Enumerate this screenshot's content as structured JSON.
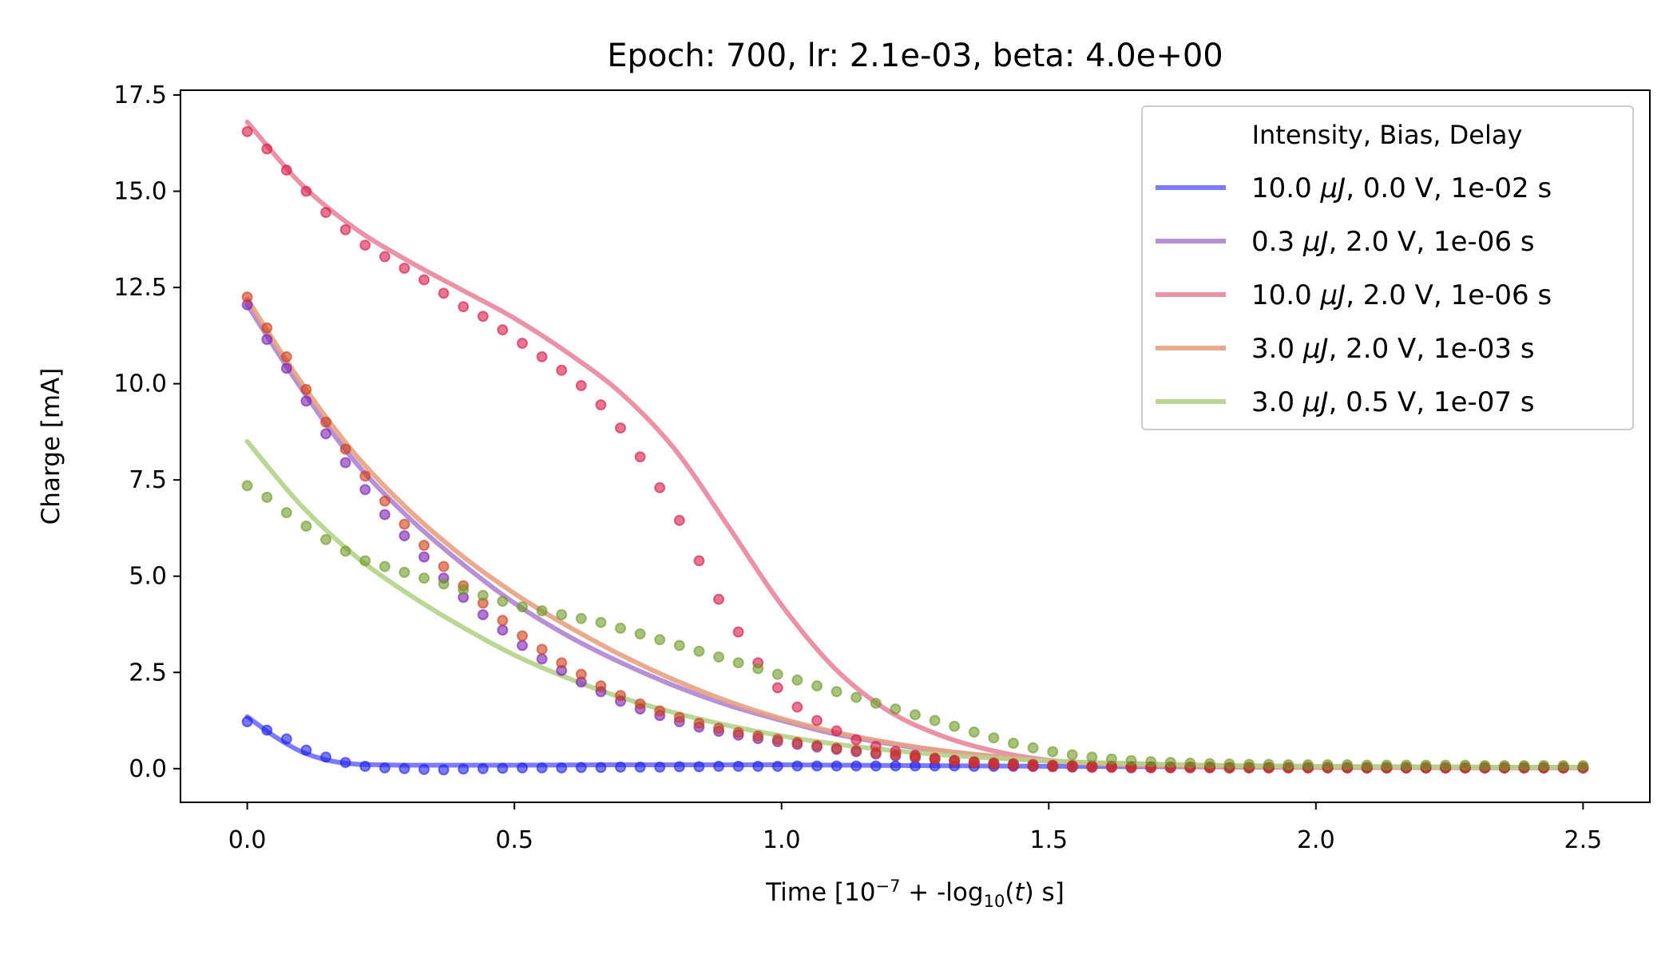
{
  "chart_data": {
    "type": "line",
    "title": "Epoch: 700, lr: 2.1e-03, beta: 4.0e+00",
    "xlabel": "Time [10⁻⁷ + -log₁₀(t) s]",
    "ylabel": "Charge [mA]",
    "xlim": [
      -0.125,
      2.625
    ],
    "ylim": [
      -0.875,
      17.625
    ],
    "xticks": [
      0.0,
      0.5,
      1.0,
      1.5,
      2.0,
      2.5
    ],
    "xtick_labels": [
      "0.0",
      "0.5",
      "1.0",
      "1.5",
      "2.0",
      "2.5"
    ],
    "yticks": [
      0.0,
      2.5,
      5.0,
      7.5,
      10.0,
      12.5,
      15.0,
      17.5
    ],
    "ytick_labels": [
      "0.0",
      "2.5",
      "5.0",
      "7.5",
      "10.0",
      "12.5",
      "15.0",
      "17.5"
    ],
    "grid": false,
    "legend": {
      "title": "Intensity, Bias, Delay",
      "placement": "top-right"
    },
    "marker_x": [
      0.0,
      0.0368,
      0.0735,
      0.1103,
      0.1471,
      0.1838,
      0.2206,
      0.2574,
      0.2941,
      0.3309,
      0.3676,
      0.4044,
      0.4412,
      0.4779,
      0.5147,
      0.5515,
      0.5882,
      0.625,
      0.6618,
      0.6985,
      0.7353,
      0.7721,
      0.8088,
      0.8456,
      0.8824,
      0.9191,
      0.9559,
      0.9926,
      1.0294,
      1.0662,
      1.1029,
      1.1397,
      1.1765,
      1.2132,
      1.25,
      1.2868,
      1.3235,
      1.3603,
      1.3971,
      1.4338,
      1.4706,
      1.5074,
      1.5441,
      1.5809,
      1.6176,
      1.6544,
      1.6912,
      1.7279,
      1.7647,
      1.8015,
      1.8382,
      1.875,
      1.9118,
      1.9485,
      1.9853,
      2.0221,
      2.0588,
      2.0956,
      2.1324,
      2.1691,
      2.2059,
      2.2426,
      2.2794,
      2.3162,
      2.3529,
      2.3897,
      2.4265,
      2.4632,
      2.5
    ],
    "series": [
      {
        "name": "10.0 μJ, 0.0 V, 1e-02 s",
        "line_color": "#6d6dff",
        "marker_color": "#2323e6",
        "line_x": [
          0.0,
          0.05,
          0.1,
          0.15,
          0.2,
          0.25,
          0.3,
          0.4,
          0.5,
          0.7,
          1.0,
          1.5,
          2.0,
          2.5
        ],
        "line_y": [
          1.35,
          0.85,
          0.45,
          0.22,
          0.12,
          0.1,
          0.09,
          0.09,
          0.09,
          0.1,
          0.1,
          0.06,
          0.04,
          0.03
        ],
        "marker_y": [
          1.22,
          1.0,
          0.77,
          0.48,
          0.3,
          0.16,
          0.06,
          0.02,
          0.0,
          -0.02,
          -0.03,
          -0.01,
          0.0,
          0.01,
          0.02,
          0.02,
          0.02,
          0.03,
          0.03,
          0.04,
          0.04,
          0.04,
          0.05,
          0.05,
          0.06,
          0.06,
          0.06,
          0.06,
          0.07,
          0.07,
          0.07,
          0.07,
          0.07,
          0.07,
          0.07,
          0.07,
          0.07,
          0.06,
          0.06,
          0.06,
          0.06,
          0.06,
          0.05,
          0.05,
          0.05,
          0.04,
          0.04,
          0.04,
          0.04,
          0.04,
          0.03,
          0.03,
          0.03,
          0.03,
          0.03,
          0.03,
          0.03,
          0.02,
          0.02,
          0.02,
          0.02,
          0.02,
          0.02,
          0.02,
          0.02,
          0.02,
          0.02,
          0.02,
          0.02
        ]
      },
      {
        "name": "0.3 μJ, 2.0 V, 1e-06 s",
        "line_color": "#b084d0",
        "marker_color": "#7a1fb0",
        "line_x": [
          0.0,
          0.1,
          0.2,
          0.3,
          0.4,
          0.5,
          0.6,
          0.7,
          0.8,
          0.9,
          1.0,
          1.1,
          1.2,
          1.3,
          1.4,
          1.5,
          1.6,
          1.8,
          2.0,
          2.5
        ],
        "line_y": [
          12.05,
          9.9,
          8.0,
          6.55,
          5.35,
          4.3,
          3.45,
          2.75,
          2.15,
          1.65,
          1.25,
          0.9,
          0.65,
          0.45,
          0.3,
          0.2,
          0.14,
          0.08,
          0.05,
          0.03
        ],
        "marker_y": [
          12.05,
          11.15,
          10.4,
          9.55,
          8.7,
          7.95,
          7.25,
          6.6,
          6.05,
          5.5,
          4.95,
          4.45,
          4.0,
          3.6,
          3.2,
          2.85,
          2.55,
          2.25,
          2.0,
          1.75,
          1.55,
          1.38,
          1.22,
          1.08,
          0.97,
          0.87,
          0.78,
          0.7,
          0.63,
          0.56,
          0.5,
          0.44,
          0.38,
          0.33,
          0.28,
          0.24,
          0.2,
          0.17,
          0.14,
          0.12,
          0.1,
          0.08,
          0.07,
          0.06,
          0.05,
          0.04,
          0.04,
          0.03,
          0.03,
          0.03,
          0.02,
          0.02,
          0.02,
          0.02,
          0.02,
          0.02,
          0.02,
          0.02,
          0.02,
          0.02,
          0.02,
          0.02,
          0.02,
          0.02,
          0.02,
          0.02,
          0.02,
          0.02,
          0.02
        ]
      },
      {
        "name": "10.0 μJ, 2.0 V, 1e-06 s",
        "line_color": "#e8879f",
        "marker_color": "#d41a4a",
        "line_x": [
          0.0,
          0.1,
          0.2,
          0.3,
          0.4,
          0.5,
          0.6,
          0.7,
          0.8,
          0.9,
          1.0,
          1.1,
          1.2,
          1.3,
          1.4,
          1.5,
          1.6,
          1.7,
          1.8,
          2.0,
          2.5
        ],
        "line_y": [
          16.8,
          15.2,
          14.05,
          13.2,
          12.45,
          11.7,
          10.8,
          9.75,
          8.3,
          6.3,
          4.25,
          2.6,
          1.5,
          0.85,
          0.45,
          0.22,
          0.12,
          0.07,
          0.05,
          0.03,
          0.02
        ],
        "marker_y": [
          16.55,
          16.1,
          15.55,
          15.0,
          14.45,
          14.0,
          13.6,
          13.3,
          13.0,
          12.7,
          12.35,
          12.0,
          11.75,
          11.4,
          11.05,
          10.7,
          10.35,
          9.95,
          9.45,
          8.85,
          8.1,
          7.3,
          6.45,
          5.4,
          4.4,
          3.55,
          2.75,
          2.1,
          1.6,
          1.25,
          0.98,
          0.75,
          0.58,
          0.45,
          0.35,
          0.27,
          0.2,
          0.15,
          0.11,
          0.08,
          0.06,
          0.05,
          0.04,
          0.03,
          0.03,
          0.02,
          0.02,
          0.02,
          0.02,
          0.02,
          0.02,
          0.02,
          0.02,
          0.02,
          0.02,
          0.02,
          0.02,
          0.02,
          0.02,
          0.02,
          0.02,
          0.02,
          0.02,
          0.02,
          0.02,
          0.02,
          0.02,
          0.02,
          0.02
        ]
      },
      {
        "name": "3.0 μJ, 2.0 V, 1e-03 s",
        "line_color": "#e5a184",
        "marker_color": "#cc3d1a",
        "line_x": [
          0.0,
          0.1,
          0.2,
          0.3,
          0.4,
          0.5,
          0.6,
          0.7,
          0.8,
          0.9,
          1.0,
          1.1,
          1.2,
          1.3,
          1.4,
          1.5,
          1.6,
          1.8,
          2.0,
          2.5
        ],
        "line_y": [
          12.2,
          10.05,
          8.2,
          6.75,
          5.55,
          4.55,
          3.7,
          2.95,
          2.3,
          1.75,
          1.3,
          0.95,
          0.68,
          0.47,
          0.32,
          0.21,
          0.14,
          0.08,
          0.05,
          0.03
        ],
        "marker_y": [
          12.25,
          11.45,
          10.7,
          9.85,
          9.0,
          8.3,
          7.6,
          6.95,
          6.35,
          5.8,
          5.25,
          4.75,
          4.3,
          3.85,
          3.45,
          3.1,
          2.75,
          2.45,
          2.15,
          1.9,
          1.68,
          1.5,
          1.33,
          1.18,
          1.05,
          0.94,
          0.85,
          0.76,
          0.68,
          0.6,
          0.53,
          0.47,
          0.41,
          0.36,
          0.31,
          0.26,
          0.22,
          0.18,
          0.15,
          0.13,
          0.11,
          0.09,
          0.08,
          0.07,
          0.06,
          0.05,
          0.05,
          0.04,
          0.04,
          0.04,
          0.03,
          0.03,
          0.03,
          0.03,
          0.03,
          0.03,
          0.03,
          0.03,
          0.03,
          0.03,
          0.03,
          0.03,
          0.03,
          0.03,
          0.03,
          0.03,
          0.03,
          0.03,
          0.03
        ]
      },
      {
        "name": "3.0 μJ, 0.5 V, 1e-07 s",
        "line_color": "#b5d18c",
        "marker_color": "#6f9a2a",
        "line_x": [
          0.0,
          0.1,
          0.2,
          0.3,
          0.4,
          0.5,
          0.6,
          0.7,
          0.8,
          0.9,
          1.0,
          1.1,
          1.2,
          1.3,
          1.4,
          1.5,
          1.6,
          1.8,
          2.0,
          2.5
        ],
        "line_y": [
          8.5,
          6.85,
          5.55,
          4.55,
          3.7,
          2.95,
          2.35,
          1.85,
          1.45,
          1.12,
          0.85,
          0.64,
          0.48,
          0.36,
          0.27,
          0.2,
          0.15,
          0.09,
          0.06,
          0.03
        ],
        "marker_y": [
          7.35,
          7.05,
          6.65,
          6.3,
          5.95,
          5.65,
          5.4,
          5.25,
          5.1,
          4.95,
          4.8,
          4.65,
          4.5,
          4.35,
          4.2,
          4.1,
          4.0,
          3.9,
          3.8,
          3.65,
          3.5,
          3.35,
          3.2,
          3.05,
          2.9,
          2.75,
          2.6,
          2.45,
          2.3,
          2.15,
          2.0,
          1.85,
          1.7,
          1.55,
          1.4,
          1.25,
          1.1,
          0.95,
          0.8,
          0.66,
          0.54,
          0.44,
          0.36,
          0.3,
          0.25,
          0.21,
          0.18,
          0.16,
          0.14,
          0.13,
          0.12,
          0.11,
          0.11,
          0.1,
          0.1,
          0.1,
          0.1,
          0.09,
          0.09,
          0.09,
          0.09,
          0.09,
          0.09,
          0.08,
          0.08,
          0.08,
          0.08,
          0.08,
          0.08
        ]
      }
    ]
  }
}
